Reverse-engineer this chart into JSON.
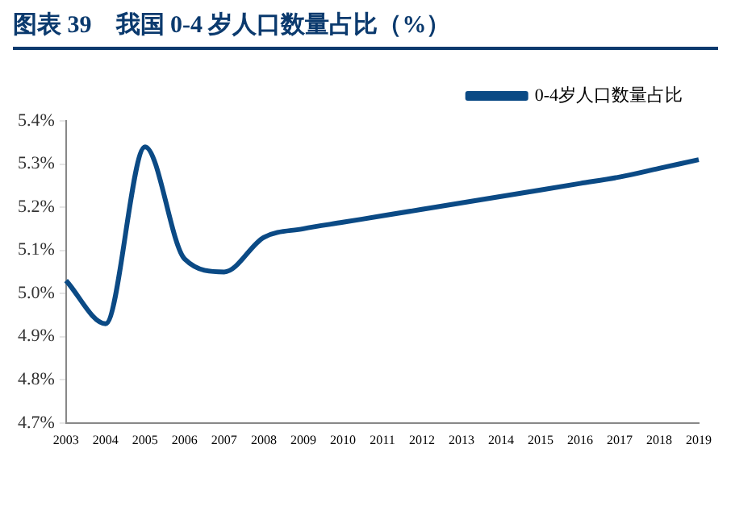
{
  "chart_data": {
    "type": "line",
    "title": "图表 39　我国 0-4 岁人口数量占比（%）",
    "categories": [
      "2003",
      "2004",
      "2005",
      "2006",
      "2007",
      "2008",
      "2009",
      "2010",
      "2011",
      "2012",
      "2013",
      "2014",
      "2015",
      "2016",
      "2017",
      "2018",
      "2019"
    ],
    "series": [
      {
        "name": "0-4岁人口数量占比",
        "color": "#0b4a85",
        "values": [
          5.03,
          4.93,
          5.34,
          5.08,
          5.05,
          5.13,
          5.15,
          5.165,
          5.18,
          5.195,
          5.21,
          5.225,
          5.24,
          5.255,
          5.27,
          5.29,
          5.31
        ]
      }
    ],
    "ylim": [
      4.7,
      5.4
    ],
    "yticks": [
      {
        "value": 4.7,
        "label": "4.7%"
      },
      {
        "value": 4.8,
        "label": "4.8%"
      },
      {
        "value": 4.9,
        "label": "4.9%"
      },
      {
        "value": 5.0,
        "label": "5.0%"
      },
      {
        "value": 5.1,
        "label": "5.1%"
      },
      {
        "value": 5.2,
        "label": "5.2%"
      },
      {
        "value": 5.3,
        "label": "5.3%"
      },
      {
        "value": 5.4,
        "label": "5.4%"
      }
    ],
    "legend": "top right",
    "marker": "none",
    "line_style": "solid"
  }
}
